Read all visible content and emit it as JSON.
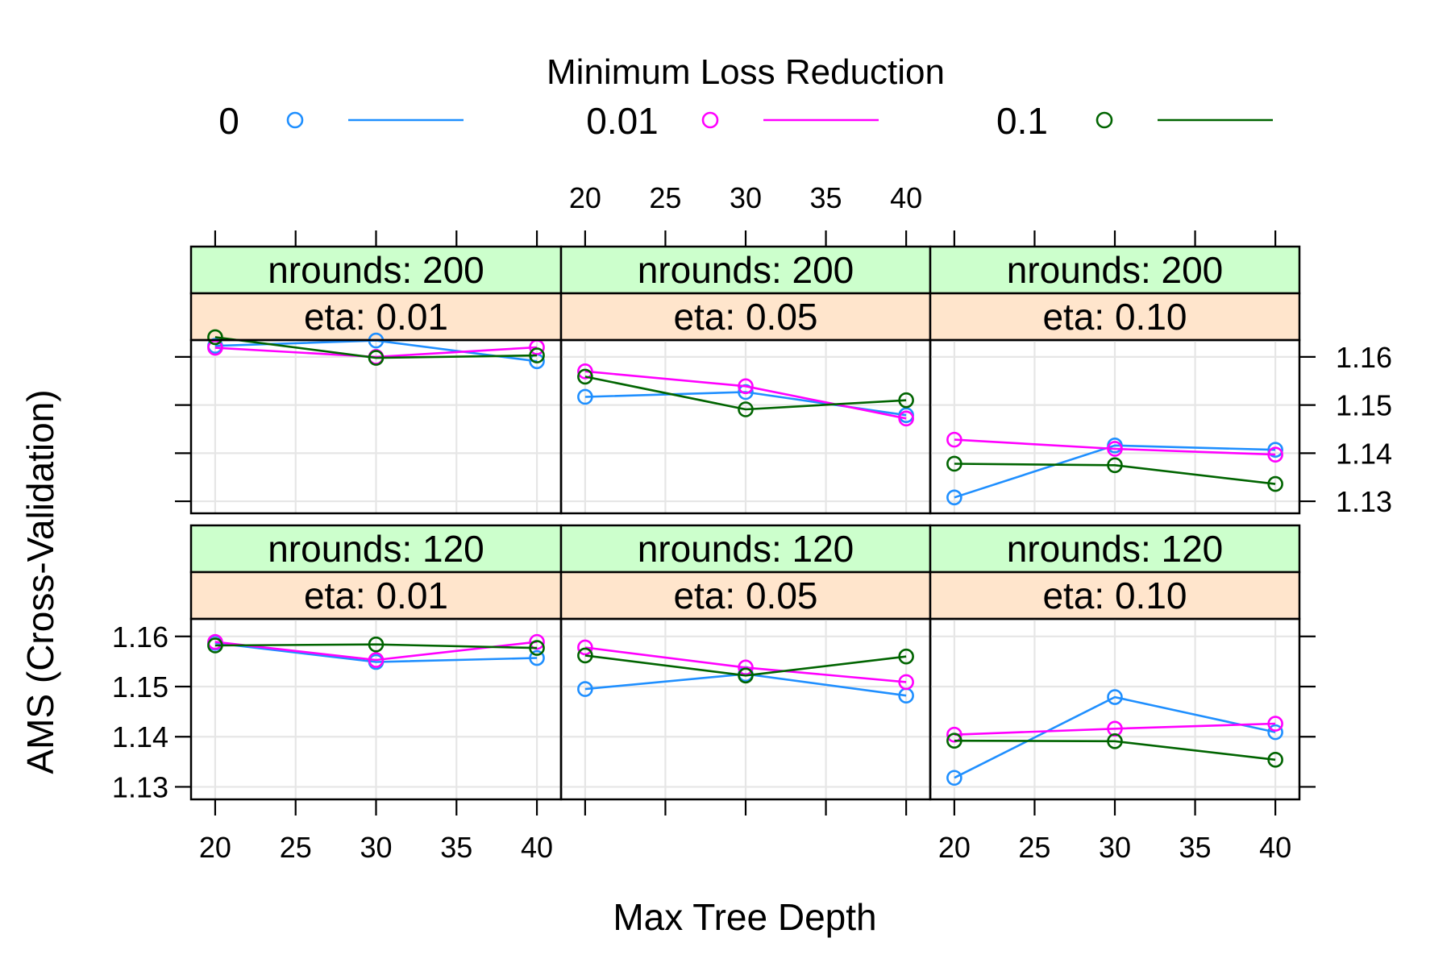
{
  "chart_data": {
    "type": "line",
    "title": "",
    "xlabel": "Max Tree Depth",
    "ylabel": "AMS (Cross-Validation)",
    "legend": {
      "title": "Minimum Loss Reduction",
      "position": "top",
      "entries": [
        {
          "label": "0",
          "color": "#1f8fff"
        },
        {
          "label": "0.01",
          "color": "#ff00ff"
        },
        {
          "label": "0.1",
          "color": "#006400"
        }
      ]
    },
    "x": [
      20,
      30,
      40
    ],
    "x_ticks": [
      "20",
      "25",
      "30",
      "35",
      "40"
    ],
    "y_ticks": [
      "1.13",
      "1.14",
      "1.15",
      "1.16"
    ],
    "xlim": [
      18.5,
      41.5
    ],
    "ylim": [
      1.1275,
      1.1635
    ],
    "grid": true,
    "panels": [
      {
        "strips": [
          "nrounds: 200",
          "eta: 0.01"
        ],
        "series": [
          {
            "name": "0",
            "values": [
              1.1623,
              1.1634,
              1.1591
            ]
          },
          {
            "name": "0.01",
            "values": [
              1.1619,
              1.16,
              1.162
            ]
          },
          {
            "name": "0.1",
            "values": [
              1.1641,
              1.1598,
              1.1603
            ]
          }
        ]
      },
      {
        "strips": [
          "nrounds: 200",
          "eta: 0.05"
        ],
        "series": [
          {
            "name": "0",
            "values": [
              1.1517,
              1.1527,
              1.1479
            ]
          },
          {
            "name": "0.01",
            "values": [
              1.157,
              1.1539,
              1.1472
            ]
          },
          {
            "name": "0.1",
            "values": [
              1.1559,
              1.1491,
              1.151
            ]
          }
        ]
      },
      {
        "strips": [
          "nrounds: 200",
          "eta: 0.10"
        ],
        "series": [
          {
            "name": "0",
            "values": [
              1.1308,
              1.1416,
              1.1407
            ]
          },
          {
            "name": "0.01",
            "values": [
              1.1428,
              1.1409,
              1.1397
            ]
          },
          {
            "name": "0.1",
            "values": [
              1.1378,
              1.1375,
              1.1336
            ]
          }
        ]
      },
      {
        "strips": [
          "nrounds: 120",
          "eta: 0.01"
        ],
        "series": [
          {
            "name": "0",
            "values": [
              1.1587,
              1.1549,
              1.1557
            ]
          },
          {
            "name": "0.01",
            "values": [
              1.1589,
              1.1553,
              1.1589
            ]
          },
          {
            "name": "0.1",
            "values": [
              1.1582,
              1.1584,
              1.1577
            ]
          }
        ]
      },
      {
        "strips": [
          "nrounds: 120",
          "eta: 0.05"
        ],
        "series": [
          {
            "name": "0",
            "values": [
              1.1495,
              1.1525,
              1.1482
            ]
          },
          {
            "name": "0.01",
            "values": [
              1.1578,
              1.1538,
              1.1509
            ]
          },
          {
            "name": "0.1",
            "values": [
              1.1562,
              1.1522,
              1.156
            ]
          }
        ]
      },
      {
        "strips": [
          "nrounds: 120",
          "eta: 0.10"
        ],
        "series": [
          {
            "name": "0",
            "values": [
              1.1318,
              1.1479,
              1.1409
            ]
          },
          {
            "name": "0.01",
            "values": [
              1.1404,
              1.1416,
              1.1426
            ]
          },
          {
            "name": "0.1",
            "values": [
              1.1392,
              1.1391,
              1.1354
            ]
          }
        ]
      }
    ]
  }
}
